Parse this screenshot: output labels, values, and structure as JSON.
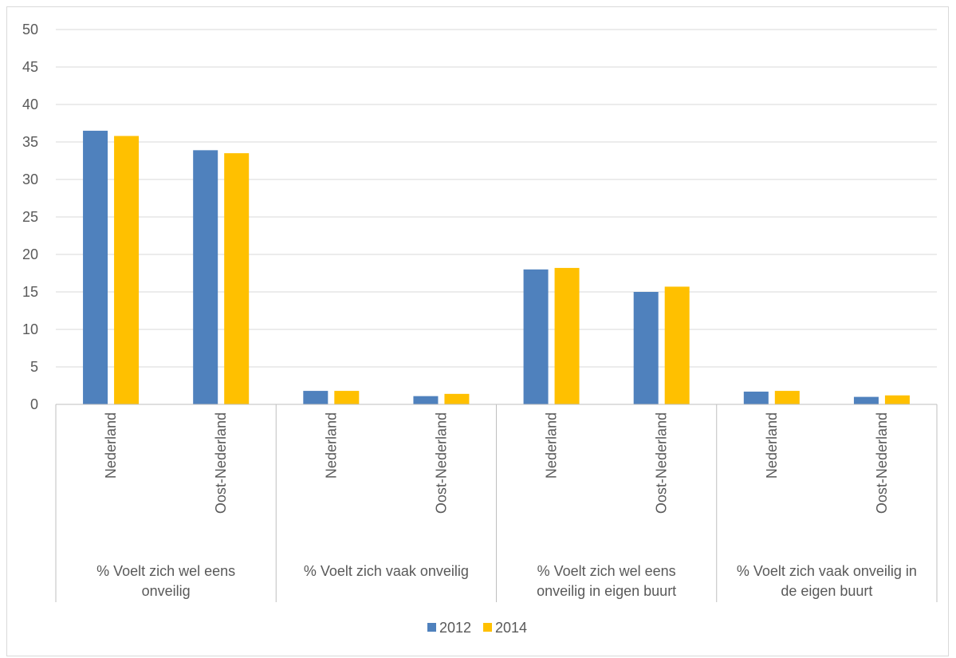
{
  "chart_data": {
    "type": "bar",
    "ylim": [
      0,
      50
    ],
    "yticks": [
      0,
      5,
      10,
      15,
      20,
      25,
      30,
      35,
      40,
      45,
      50
    ],
    "grid": true,
    "legend_position": "bottom",
    "groups": [
      {
        "label_lines": [
          "% Voelt zich wel eens",
          "onveilig"
        ],
        "categories": [
          "Nederland",
          "Oost-Nederland"
        ]
      },
      {
        "label_lines": [
          "% Voelt zich vaak onveilig"
        ],
        "categories": [
          "Nederland",
          "Oost-Nederland"
        ]
      },
      {
        "label_lines": [
          "% Voelt zich wel eens",
          "onveilig in eigen buurt"
        ],
        "categories": [
          "Nederland",
          "Oost-Nederland"
        ]
      },
      {
        "label_lines": [
          "% Voelt zich vaak onveilig in",
          "de eigen buurt"
        ],
        "categories": [
          "Nederland",
          "Oost-Nederland"
        ]
      }
    ],
    "series": [
      {
        "name": "2012",
        "color": "#4f81bd",
        "values": [
          36.5,
          33.9,
          1.8,
          1.1,
          18.0,
          15.0,
          1.7,
          1.0
        ]
      },
      {
        "name": "2014",
        "color": "#ffc000",
        "values": [
          35.8,
          33.5,
          1.8,
          1.4,
          18.2,
          15.7,
          1.8,
          1.2
        ]
      }
    ]
  }
}
